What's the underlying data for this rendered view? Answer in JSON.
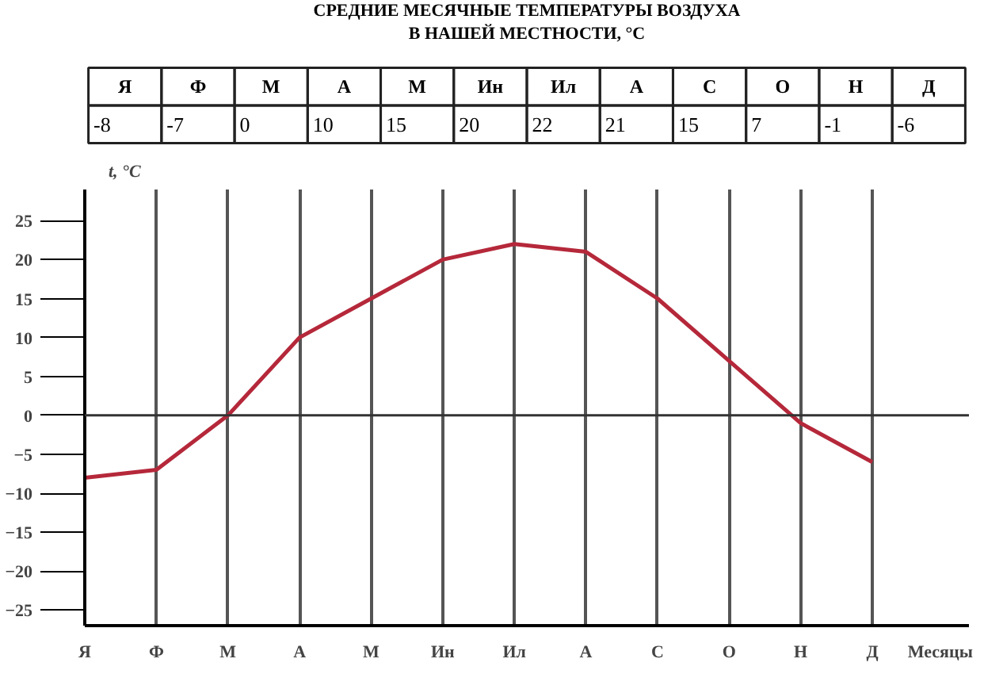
{
  "chart_data": {
    "type": "line",
    "title": "СРЕДНИЕ МЕСЯЧНЫЕ ТЕМПЕРАТУРЫ ВОЗДУХА\nВ НАШЕЙ МЕСТНОСТИ, °С",
    "categories": [
      "Я",
      "Ф",
      "М",
      "А",
      "М",
      "Ин",
      "Ил",
      "А",
      "С",
      "О",
      "Н",
      "Д"
    ],
    "series": [
      {
        "color": "#b5283a",
        "values": [
          -8,
          -7,
          0,
          10,
          15,
          20,
          22,
          21,
          15,
          7,
          -1,
          -6
        ]
      }
    ],
    "xlabel": "Месяцы",
    "ylabel": "t, °C",
    "ylim": [
      -27,
      29
    ],
    "yticks": [
      -25,
      -20,
      -15,
      -10,
      -5,
      0,
      5,
      10,
      15,
      20,
      25
    ],
    "ref_lines": [
      {
        "axis": "y",
        "value": 0,
        "color": "#333333"
      }
    ],
    "grid": "x",
    "marker": "none",
    "line_style": "solid",
    "data_labels": true
  }
}
